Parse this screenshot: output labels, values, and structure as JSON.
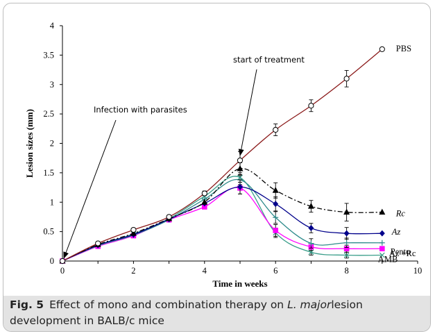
{
  "caption": {
    "label": "Fig. 5",
    "text_pre": "Effect of mono and combination therapy on ",
    "text_em": "L. major",
    "text_post": "lesion development in BALB/c mice"
  },
  "chart_data": {
    "type": "line",
    "xlabel": "Time in weeks",
    "ylabel": "Lesion sizes (mm)",
    "xlim": [
      0,
      10
    ],
    "ylim": [
      0,
      4
    ],
    "xticks": [
      "0",
      "2",
      "4",
      "6",
      "8",
      "10"
    ],
    "yticks": [
      "0",
      "0.5",
      "1",
      "1.5",
      "2",
      "2.5",
      "3",
      "3.5",
      "4"
    ],
    "grid": false,
    "annotations": [
      {
        "text": "Infection with parasites",
        "points_to": [
          0,
          0
        ]
      },
      {
        "text": "start of treatment",
        "points_to": [
          5,
          1.7
        ]
      }
    ],
    "series": [
      {
        "name": "PBS",
        "color": "#8b1a1a",
        "marker": "circle-open",
        "dash": "",
        "x": [
          0,
          1,
          2,
          3,
          4,
          5,
          6,
          7,
          8,
          9
        ],
        "y": [
          0,
          0.3,
          0.53,
          0.75,
          1.15,
          1.71,
          2.23,
          2.64,
          3.1,
          3.6
        ],
        "err": [
          0,
          0,
          0.03,
          0.03,
          0.04,
          0.15,
          0.1,
          0.1,
          0.14,
          0
        ]
      },
      {
        "name": "Rc",
        "color": "#000000",
        "marker": "triangle",
        "dash": "7,3,2,3",
        "x": [
          0,
          1,
          2,
          3,
          4,
          5,
          6,
          7,
          8,
          9
        ],
        "y": [
          0,
          0.28,
          0.47,
          0.72,
          1.0,
          1.57,
          1.2,
          0.93,
          0.83,
          0.83
        ],
        "err": [
          0,
          0,
          0,
          0,
          0,
          0.1,
          0.13,
          0.1,
          0.15,
          0
        ]
      },
      {
        "name": "Az",
        "color": "#00008b",
        "marker": "diamond",
        "dash": "",
        "x": [
          0,
          1,
          2,
          3,
          4,
          5,
          6,
          7,
          8,
          9
        ],
        "y": [
          0,
          0.27,
          0.45,
          0.71,
          0.98,
          1.26,
          0.97,
          0.56,
          0.47,
          0.47
        ],
        "err": [
          0,
          0,
          0,
          0,
          0,
          0.12,
          0.12,
          0.08,
          0.1,
          0
        ]
      },
      {
        "name": "Pento",
        "color": "#2e8b8b",
        "marker": "plus",
        "dash": "",
        "x": [
          0,
          1,
          2,
          3,
          4,
          5,
          6,
          7,
          8,
          9
        ],
        "y": [
          0,
          0.26,
          0.44,
          0.7,
          1.05,
          1.38,
          0.74,
          0.3,
          0.31,
          0.31
        ],
        "err": [
          0,
          0,
          0,
          0,
          0,
          0.08,
          0.1,
          0.08,
          0.08,
          0
        ]
      },
      {
        "name": "Az +Rc",
        "color": "#ff00ff",
        "marker": "square",
        "dash": "",
        "x": [
          0,
          1,
          2,
          3,
          4,
          5,
          6,
          7,
          8,
          9
        ],
        "y": [
          0,
          0.25,
          0.43,
          0.7,
          0.92,
          1.24,
          0.52,
          0.24,
          0.21,
          0.21
        ],
        "err": [
          0,
          0,
          0,
          0,
          0,
          0.1,
          0.1,
          0.06,
          0.06,
          0
        ]
      },
      {
        "name": "AMB",
        "color": "#3a9e8a",
        "marker": "cross",
        "dash": "",
        "x": [
          0,
          1,
          2,
          3,
          4,
          5,
          6,
          7,
          8,
          9
        ],
        "y": [
          0,
          0.27,
          0.46,
          0.72,
          1.1,
          1.42,
          0.48,
          0.15,
          0.1,
          0.1
        ],
        "err": [
          0,
          0,
          0,
          0,
          0,
          0.08,
          0.08,
          0.05,
          0.05,
          0
        ]
      }
    ]
  }
}
